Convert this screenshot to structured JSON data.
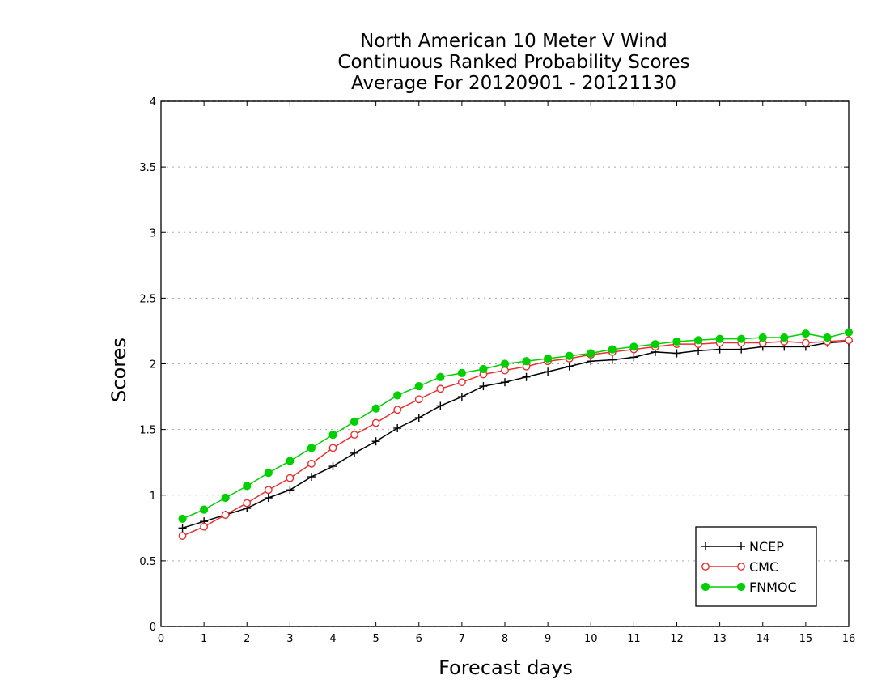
{
  "chart_data": {
    "type": "line",
    "title": [
      "North American 10 Meter V Wind",
      "Continuous Ranked Probability Scores",
      "Average For 20120901 - 20121130"
    ],
    "xlabel": "Forecast days",
    "ylabel": "Scores",
    "xlim": [
      0,
      16
    ],
    "ylim": [
      0,
      4
    ],
    "xticks": [
      "0",
      "1",
      "2",
      "3",
      "4",
      "5",
      "6",
      "7",
      "8",
      "9",
      "10",
      "11",
      "12",
      "13",
      "14",
      "15",
      "16"
    ],
    "yticks": [
      "0",
      "0.5",
      "1",
      "1.5",
      "2",
      "2.5",
      "3",
      "3.5",
      "4"
    ],
    "grid": "horizontal-dotted",
    "legend_position": "bottom-right",
    "x": [
      0.5,
      1,
      1.5,
      2,
      2.5,
      3,
      3.5,
      4,
      4.5,
      5,
      5.5,
      6,
      6.5,
      7,
      7.5,
      8,
      8.5,
      9,
      9.5,
      10,
      10.5,
      11,
      11.5,
      12,
      12.5,
      13,
      13.5,
      14,
      14.5,
      15,
      15.5,
      16
    ],
    "series": [
      {
        "name": "NCEP",
        "color": "#000000",
        "marker": "plus",
        "values": [
          0.75,
          0.8,
          0.85,
          0.9,
          0.98,
          1.04,
          1.14,
          1.22,
          1.32,
          1.41,
          1.51,
          1.59,
          1.68,
          1.75,
          1.83,
          1.86,
          1.9,
          1.94,
          1.98,
          2.02,
          2.03,
          2.05,
          2.09,
          2.08,
          2.1,
          2.11,
          2.11,
          2.13,
          2.13,
          2.13,
          2.16,
          2.17
        ]
      },
      {
        "name": "CMC",
        "color": "#e8302f",
        "marker": "open-circle",
        "values": [
          0.69,
          0.76,
          0.85,
          0.94,
          1.04,
          1.13,
          1.24,
          1.36,
          1.46,
          1.55,
          1.65,
          1.73,
          1.81,
          1.86,
          1.92,
          1.95,
          1.98,
          2.02,
          2.04,
          2.07,
          2.09,
          2.11,
          2.13,
          2.15,
          2.15,
          2.16,
          2.16,
          2.16,
          2.17,
          2.16,
          2.17,
          2.18
        ]
      },
      {
        "name": "FNMOC",
        "color": "#00d000",
        "marker": "filled-circle",
        "values": [
          0.82,
          0.89,
          0.98,
          1.07,
          1.17,
          1.26,
          1.36,
          1.46,
          1.56,
          1.66,
          1.76,
          1.83,
          1.9,
          1.93,
          1.96,
          2.0,
          2.02,
          2.04,
          2.06,
          2.08,
          2.11,
          2.13,
          2.15,
          2.17,
          2.18,
          2.19,
          2.19,
          2.2,
          2.2,
          2.23,
          2.2,
          2.24
        ]
      }
    ]
  }
}
